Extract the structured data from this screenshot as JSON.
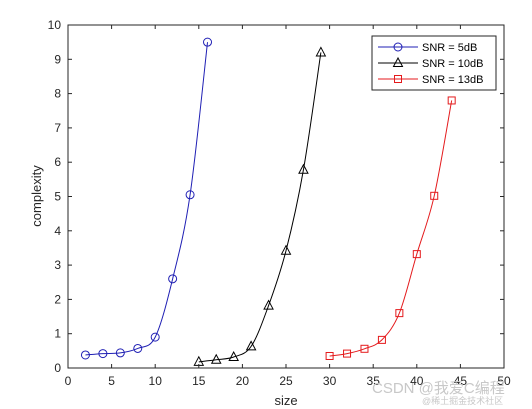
{
  "chart_data": {
    "type": "line",
    "xlabel": "size",
    "ylabel": "complexity",
    "xlim": [
      0,
      50
    ],
    "ylim": [
      0,
      10
    ],
    "xticks": [
      0,
      5,
      10,
      15,
      20,
      25,
      30,
      35,
      40,
      45,
      50
    ],
    "yticks": [
      0,
      1,
      2,
      3,
      4,
      5,
      6,
      7,
      8,
      9,
      10
    ],
    "grid": false,
    "legend_position": "top-right",
    "series": [
      {
        "name": "SNR = 5dB",
        "color": "#1f1fb4",
        "marker": "circle",
        "x": [
          2,
          4,
          6,
          8,
          10,
          12,
          14,
          16
        ],
        "y": [
          0.38,
          0.42,
          0.44,
          0.57,
          0.9,
          2.6,
          5.05,
          9.5
        ]
      },
      {
        "name": "SNR = 10dB",
        "color": "#000000",
        "marker": "triangle",
        "x": [
          15,
          17,
          19,
          21,
          23,
          25,
          27,
          29
        ],
        "y": [
          0.18,
          0.24,
          0.32,
          0.63,
          1.82,
          3.42,
          5.78,
          9.2
        ]
      },
      {
        "name": "SNR = 13dB",
        "color": "#e41a1c",
        "marker": "square",
        "x": [
          30,
          32,
          34,
          36,
          38,
          40,
          42,
          44
        ],
        "y": [
          0.35,
          0.42,
          0.56,
          0.82,
          1.6,
          3.32,
          5.02,
          7.8
        ]
      }
    ]
  },
  "watermark": {
    "line1": "CSDN @我爱C编程",
    "line2": "@稀土掘金技术社区"
  }
}
